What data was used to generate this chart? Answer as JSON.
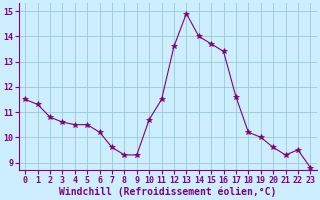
{
  "x": [
    0,
    1,
    2,
    3,
    4,
    5,
    6,
    7,
    8,
    9,
    10,
    11,
    12,
    13,
    14,
    15,
    16,
    17,
    18,
    19,
    20,
    21,
    22,
    23
  ],
  "y": [
    11.5,
    11.3,
    10.8,
    10.6,
    10.5,
    10.5,
    10.2,
    9.6,
    9.3,
    9.3,
    10.7,
    11.5,
    13.6,
    14.9,
    14.0,
    13.7,
    13.4,
    11.6,
    10.2,
    10.0,
    9.6,
    9.3,
    9.5,
    8.8
  ],
  "line_color": "#800080",
  "marker": "*",
  "marker_size": 4,
  "bg_color": "#cceeff",
  "grid_color": "#99cccc",
  "xlabel": "Windchill (Refroidissement éolien,°C)",
  "xlabel_color": "#800080",
  "tick_color": "#800080",
  "spine_color": "#800080",
  "ylim_min": 8.7,
  "ylim_max": 15.3,
  "xlim_min": -0.5,
  "xlim_max": 23.5,
  "yticks": [
    9,
    10,
    11,
    12,
    13,
    14,
    15
  ],
  "xticks": [
    0,
    1,
    2,
    3,
    4,
    5,
    6,
    7,
    8,
    9,
    10,
    11,
    12,
    13,
    14,
    15,
    16,
    17,
    18,
    19,
    20,
    21,
    22,
    23
  ],
  "tick_fontsize": 6,
  "xlabel_fontsize": 7
}
